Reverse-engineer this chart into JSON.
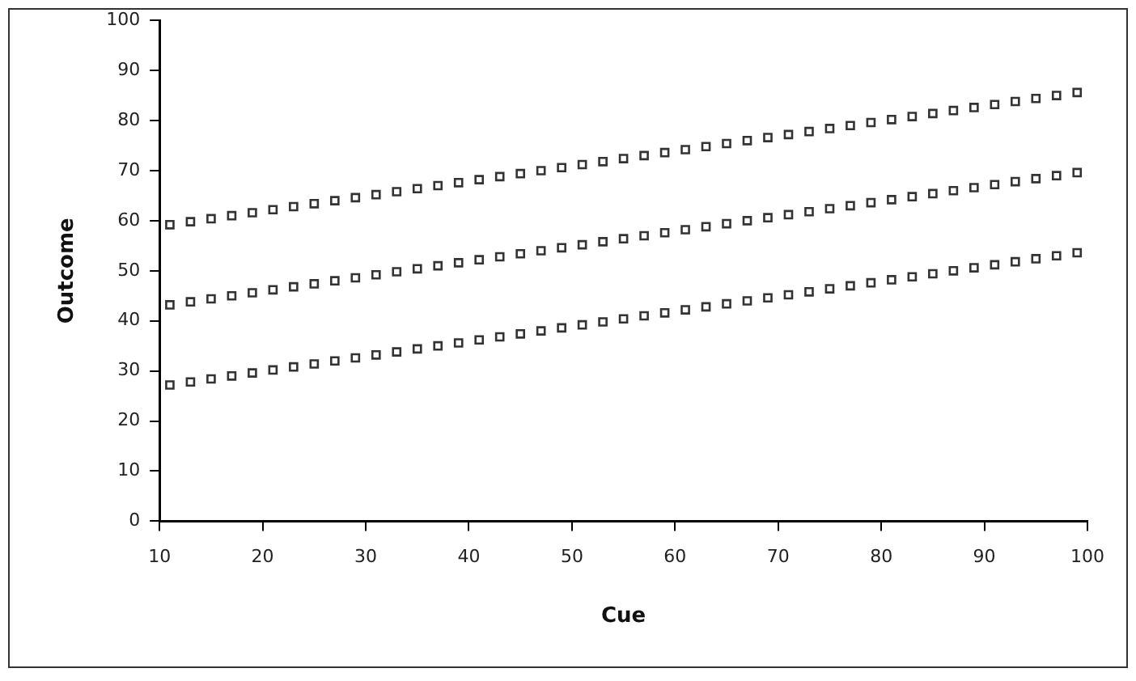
{
  "chart_data": {
    "type": "scatter",
    "xlabel": "Cue",
    "ylabel": "Outcome",
    "marker": "square",
    "x": [
      11,
      13,
      15,
      17,
      19,
      21,
      23,
      25,
      27,
      29,
      31,
      33,
      35,
      37,
      39,
      41,
      43,
      45,
      47,
      49,
      51,
      53,
      55,
      57,
      59,
      61,
      63,
      65,
      67,
      69,
      71,
      73,
      75,
      77,
      79,
      81,
      83,
      85,
      87,
      89,
      91,
      93,
      95,
      97,
      99
    ],
    "series": [
      {
        "color": "#333333",
        "values": [
          59.2,
          59.8,
          60.4,
          61,
          61.6,
          62.2,
          62.8,
          63.4,
          64,
          64.6,
          65.2,
          65.8,
          66.4,
          67,
          67.6,
          68.2,
          68.8,
          69.4,
          70,
          70.6,
          71.2,
          71.8,
          72.4,
          73,
          73.6,
          74.2,
          74.8,
          75.4,
          76,
          76.6,
          77.2,
          77.8,
          78.4,
          79,
          79.6,
          80.2,
          80.8,
          81.4,
          82,
          82.6,
          83.2,
          83.8,
          84.4,
          85,
          85.6
        ]
      },
      {
        "color": "#333333",
        "values": [
          43.2,
          43.8,
          44.4,
          45,
          45.6,
          46.2,
          46.8,
          47.4,
          48,
          48.6,
          49.2,
          49.8,
          50.4,
          51,
          51.6,
          52.2,
          52.8,
          53.4,
          54,
          54.6,
          55.2,
          55.8,
          56.4,
          57,
          57.6,
          58.2,
          58.8,
          59.4,
          60,
          60.6,
          61.2,
          61.8,
          62.4,
          63,
          63.6,
          64.2,
          64.8,
          65.4,
          66,
          66.6,
          67.2,
          67.8,
          68.4,
          69,
          69.6
        ]
      },
      {
        "color": "#333333",
        "values": [
          27.2,
          27.8,
          28.4,
          29,
          29.6,
          30.2,
          30.8,
          31.4,
          32,
          32.6,
          33.2,
          33.8,
          34.4,
          35,
          35.6,
          36.2,
          36.8,
          37.4,
          38,
          38.6,
          39.2,
          39.8,
          40.4,
          41,
          41.6,
          42.2,
          42.8,
          43.4,
          44,
          44.6,
          45.2,
          45.8,
          46.4,
          47,
          47.6,
          48.2,
          48.8,
          49.4,
          50,
          50.6,
          51.2,
          51.8,
          52.4,
          53,
          53.6
        ]
      }
    ],
    "xlim": [
      10,
      100
    ],
    "xticks": [
      10,
      20,
      30,
      40,
      50,
      60,
      70,
      80,
      90,
      100
    ],
    "ylim": [
      0,
      100
    ],
    "yticks": [
      0,
      10,
      20,
      30,
      40,
      50,
      60,
      70,
      80,
      90,
      100
    ]
  }
}
